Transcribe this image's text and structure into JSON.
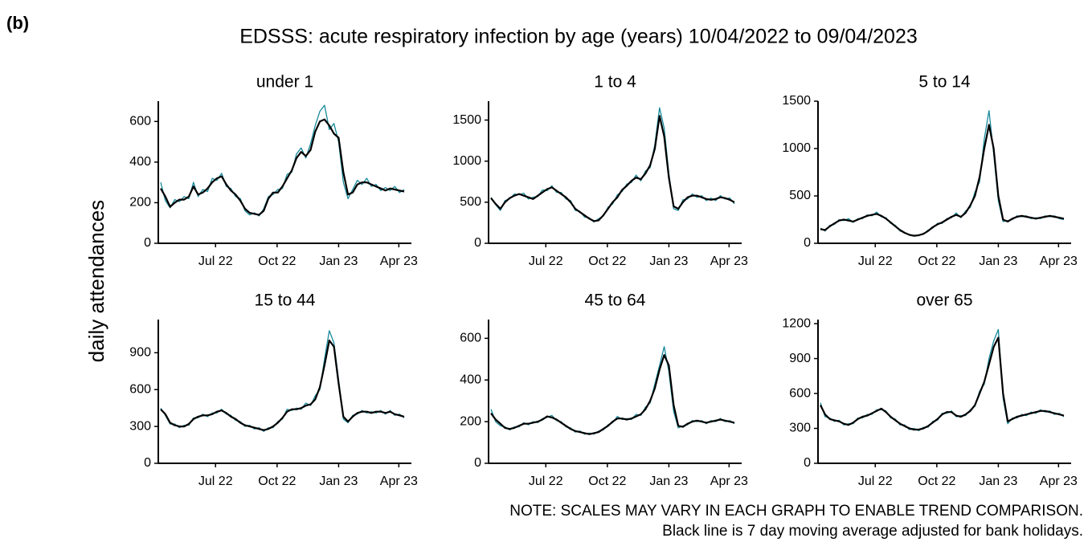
{
  "chart_data": {
    "type": "line",
    "label": "(b)",
    "title": "EDSSS: acute respiratory infection by age (years) 10/04/2022 to 09/04/2023",
    "ylabel": "daily attendances",
    "notes": [
      "NOTE: SCALES MAY VARY IN EACH GRAPH TO ENABLE TREND COMPARISON.",
      "Black line is 7 day moving average adjusted for bank holidays."
    ],
    "x": [
      "2022-04-10",
      "2022-04-17",
      "2022-04-24",
      "2022-05-01",
      "2022-05-08",
      "2022-05-15",
      "2022-05-22",
      "2022-05-29",
      "2022-06-05",
      "2022-06-12",
      "2022-06-19",
      "2022-06-26",
      "2022-07-03",
      "2022-07-10",
      "2022-07-17",
      "2022-07-24",
      "2022-07-31",
      "2022-08-07",
      "2022-08-14",
      "2022-08-21",
      "2022-08-28",
      "2022-09-04",
      "2022-09-11",
      "2022-09-18",
      "2022-09-25",
      "2022-10-02",
      "2022-10-09",
      "2022-10-16",
      "2022-10-23",
      "2022-10-30",
      "2022-11-06",
      "2022-11-13",
      "2022-11-20",
      "2022-11-27",
      "2022-12-04",
      "2022-12-11",
      "2022-12-18",
      "2022-12-25",
      "2023-01-01",
      "2023-01-08",
      "2023-01-15",
      "2023-01-22",
      "2023-01-29",
      "2023-02-05",
      "2023-02-12",
      "2023-02-19",
      "2023-02-26",
      "2023-03-05",
      "2023-03-12",
      "2023-03-19",
      "2023-03-26",
      "2023-04-02",
      "2023-04-09"
    ],
    "xlim": [
      "2022-04-10",
      "2023-04-09"
    ],
    "xticks": [
      {
        "value": "2022-07-01",
        "label": "Jul 22"
      },
      {
        "value": "2022-10-01",
        "label": "Oct 22"
      },
      {
        "value": "2023-01-01",
        "label": "Jan 23"
      },
      {
        "value": "2023-04-01",
        "label": "Apr 23"
      }
    ],
    "panels": [
      {
        "title": "under 1",
        "ylim": [
          0,
          700
        ],
        "yticks": [
          0,
          200,
          400,
          600
        ],
        "series": [
          {
            "color": "#17899b",
            "values": [
              300,
              210,
              175,
              215,
              205,
              230,
              220,
              300,
              230,
              265,
              255,
              320,
              310,
              345,
              280,
              270,
              230,
              220,
              160,
              140,
              150,
              135,
              170,
              230,
              240,
              265,
              270,
              340,
              350,
              440,
              470,
              420,
              490,
              580,
              650,
              680,
              560,
              590,
              500,
              300,
              220,
              265,
              310,
              290,
              320,
              280,
              290,
              260,
              275,
              260,
              280,
              250,
              265
            ]
          },
          {
            "color": "#000000",
            "values": [
              270,
              230,
              180,
              200,
              215,
              215,
              230,
              280,
              240,
              250,
              270,
              300,
              320,
              330,
              290,
              260,
              240,
              210,
              170,
              150,
              145,
              140,
              160,
              220,
              250,
              250,
              280,
              320,
              360,
              420,
              450,
              430,
              460,
              550,
              600,
              610,
              580,
              540,
              520,
              350,
              240,
              250,
              290,
              300,
              300,
              290,
              280,
              270,
              260,
              270,
              265,
              260,
              255
            ]
          }
        ]
      },
      {
        "title": "1 to 4",
        "ylim": [
          0,
          1730
        ],
        "yticks": [
          0,
          500,
          1000,
          1500
        ],
        "series": [
          {
            "color": "#17899b",
            "values": [
              560,
              470,
              400,
              520,
              540,
              600,
              590,
              610,
              540,
              560,
              570,
              650,
              640,
              700,
              620,
              620,
              540,
              520,
              400,
              390,
              320,
              310,
              260,
              300,
              330,
              440,
              480,
              590,
              630,
              720,
              740,
              830,
              760,
              880,
              920,
              1200,
              1650,
              1400,
              850,
              420,
              400,
              530,
              540,
              600,
              560,
              580,
              520,
              550,
              520,
              580,
              540,
              550,
              480
            ]
          },
          {
            "color": "#000000",
            "values": [
              550,
              480,
              420,
              500,
              550,
              580,
              600,
              580,
              560,
              540,
              580,
              620,
              660,
              680,
              640,
              600,
              560,
              500,
              420,
              380,
              340,
              300,
              270,
              280,
              340,
              420,
              500,
              560,
              650,
              700,
              760,
              800,
              780,
              850,
              950,
              1150,
              1550,
              1300,
              800,
              450,
              420,
              500,
              560,
              580,
              580,
              560,
              540,
              530,
              540,
              560,
              550,
              530,
              500
            ]
          }
        ]
      },
      {
        "title": "5 to 14",
        "ylim": [
          0,
          1500
        ],
        "yticks": [
          0,
          500,
          1000,
          1500
        ],
        "series": [
          {
            "color": "#17899b",
            "values": [
              160,
              130,
              190,
              200,
              250,
              240,
              260,
              220,
              260,
              260,
              300,
              290,
              330,
              280,
              270,
              210,
              190,
              130,
              115,
              85,
              75,
              90,
              95,
              140,
              160,
              210,
              210,
              260,
              270,
              320,
              270,
              340,
              380,
              540,
              650,
              1100,
              1400,
              950,
              450,
              230,
              240,
              250,
              290,
              280,
              290,
              260,
              270,
              260,
              290,
              280,
              290,
              260,
              250
            ]
          },
          {
            "color": "#000000",
            "values": [
              150,
              140,
              180,
              210,
              240,
              250,
              240,
              230,
              250,
              270,
              290,
              300,
              310,
              290,
              260,
              220,
              180,
              140,
              110,
              90,
              80,
              85,
              100,
              130,
              170,
              200,
              220,
              250,
              280,
              300,
              280,
              320,
              400,
              500,
              700,
              1000,
              1250,
              1000,
              500,
              250,
              230,
              260,
              280,
              290,
              280,
              270,
              260,
              270,
              280,
              290,
              280,
              270,
              260
            ]
          }
        ]
      },
      {
        "title": "15 to 44",
        "ylim": [
          0,
          1170
        ],
        "yticks": [
          0,
          300,
          600,
          900
        ],
        "series": [
          {
            "color": "#17899b",
            "values": [
              450,
              390,
              320,
              320,
              290,
              310,
              310,
              370,
              370,
              400,
              380,
              410,
              410,
              440,
              400,
              390,
              350,
              340,
              300,
              310,
              280,
              290,
              260,
              290,
              290,
              340,
              360,
              440,
              430,
              450,
              440,
              490,
              470,
              550,
              600,
              850,
              1080,
              980,
              680,
              360,
              330,
              390,
              400,
              430,
              410,
              420,
              410,
              430,
              400,
              430,
              390,
              400,
              370
            ]
          },
          {
            "color": "#000000",
            "values": [
              440,
              400,
              330,
              310,
              300,
              300,
              320,
              360,
              380,
              390,
              390,
              400,
              420,
              430,
              410,
              380,
              360,
              330,
              310,
              300,
              290,
              280,
              270,
              280,
              300,
              330,
              370,
              420,
              440,
              440,
              450,
              470,
              480,
              520,
              620,
              800,
              1000,
              950,
              650,
              380,
              340,
              380,
              410,
              420,
              420,
              410,
              420,
              420,
              410,
              420,
              400,
              390,
              380
            ]
          }
        ]
      },
      {
        "title": "45 to 64",
        "ylim": [
          0,
          690
        ],
        "yticks": [
          0,
          200,
          400,
          600
        ],
        "series": [
          {
            "color": "#17899b",
            "values": [
              260,
              200,
              180,
              175,
              160,
              175,
              175,
              195,
              185,
              200,
              195,
              215,
              220,
              230,
              205,
              200,
              175,
              170,
              150,
              155,
              140,
              145,
              140,
              155,
              160,
              185,
              195,
              225,
              210,
              215,
              210,
              235,
              230,
              270,
              290,
              380,
              470,
              560,
              440,
              250,
              170,
              180,
              185,
              205,
              200,
              205,
              190,
              205,
              200,
              215,
              200,
              205,
              190
            ]
          },
          {
            "color": "#000000",
            "values": [
              240,
              210,
              190,
              170,
              165,
              170,
              180,
              190,
              190,
              195,
              200,
              210,
              225,
              220,
              210,
              195,
              180,
              165,
              155,
              150,
              145,
              140,
              145,
              150,
              165,
              180,
              200,
              215,
              215,
              210,
              215,
              225,
              235,
              260,
              300,
              360,
              450,
              520,
              470,
              280,
              180,
              175,
              190,
              200,
              205,
              200,
              195,
              200,
              205,
              210,
              205,
              200,
              195
            ]
          }
        ]
      },
      {
        "title": "over 65",
        "ylim": [
          0,
          1235
        ],
        "yticks": [
          0,
          300,
          600,
          900,
          1200
        ],
        "series": [
          {
            "color": "#17899b",
            "values": [
              520,
              400,
              390,
              360,
              370,
              330,
              340,
              340,
              390,
              390,
              420,
              420,
              460,
              460,
              450,
              390,
              380,
              330,
              330,
              290,
              300,
              280,
              310,
              310,
              360,
              370,
              430,
              430,
              450,
              400,
              410,
              410,
              460,
              490,
              620,
              680,
              900,
              1050,
              1150,
              560,
              340,
              390,
              390,
              420,
              410,
              440,
              430,
              460,
              440,
              450,
              420,
              430,
              400
            ]
          },
          {
            "color": "#000000",
            "values": [
              500,
              420,
              380,
              370,
              360,
              340,
              330,
              350,
              380,
              400,
              410,
              430,
              450,
              470,
              440,
              400,
              370,
              340,
              320,
              300,
              290,
              290,
              300,
              320,
              350,
              380,
              420,
              440,
              440,
              410,
              400,
              420,
              450,
              500,
              600,
              700,
              850,
              1000,
              1080,
              600,
              360,
              380,
              400,
              410,
              420,
              430,
              440,
              450,
              450,
              440,
              430,
              420,
              410
            ]
          }
        ]
      }
    ]
  }
}
